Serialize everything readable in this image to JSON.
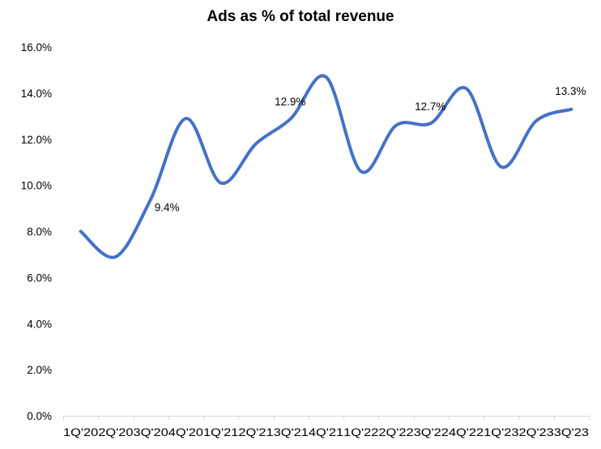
{
  "chart_data": {
    "type": "line",
    "title": "Ads as % of total revenue",
    "xlabel": "",
    "ylabel": "",
    "categories": [
      "1Q'20",
      "2Q'20",
      "3Q'20",
      "4Q'20",
      "1Q'21",
      "2Q'21",
      "3Q'21",
      "4Q'21",
      "1Q'22",
      "2Q'22",
      "3Q'22",
      "4Q'22",
      "1Q'23",
      "2Q'23",
      "3Q'23"
    ],
    "series": [
      {
        "name": "Ads as % of total revenue",
        "color": "#4472C4",
        "smooth": true,
        "values": [
          8.0,
          6.9,
          9.4,
          12.9,
          10.1,
          11.8,
          12.9,
          14.7,
          10.6,
          12.6,
          12.7,
          14.2,
          10.8,
          12.8,
          13.3
        ]
      }
    ],
    "data_labels": [
      {
        "index": 2,
        "text": "9.4%"
      },
      {
        "index": 6,
        "text": "12.9%"
      },
      {
        "index": 10,
        "text": "12.7%"
      },
      {
        "index": 14,
        "text": "13.3%"
      }
    ],
    "y_ticks": [
      "0.0%",
      "2.0%",
      "4.0%",
      "6.0%",
      "8.0%",
      "10.0%",
      "12.0%",
      "14.0%",
      "16.0%"
    ],
    "ylim": [
      0,
      16
    ],
    "grid": false,
    "legend": "none"
  }
}
